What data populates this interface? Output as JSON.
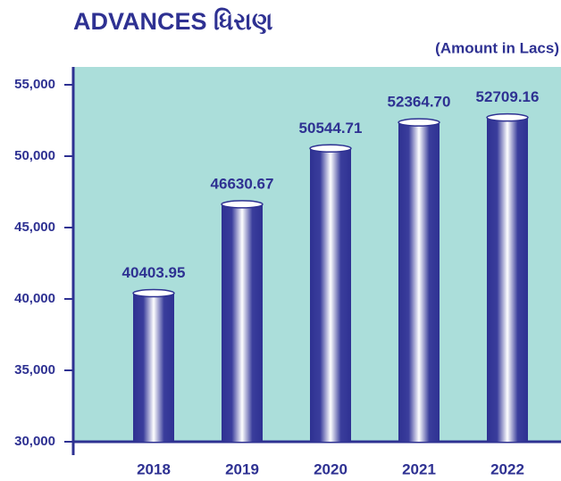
{
  "chart_data": {
    "type": "bar",
    "title": "ADVANCES ધિરાણ",
    "subtitle": "(Amount in Lacs)",
    "categories": [
      "2018",
      "2019",
      "2020",
      "2021",
      "2022"
    ],
    "values": [
      40403.95,
      46630.67,
      50544.71,
      52364.7,
      52709.16
    ],
    "value_labels": [
      "40403.95",
      "46630.67",
      "50544.71",
      "52364.70",
      "52709.16"
    ],
    "color": "#2e3192",
    "ylim": [
      30000,
      56250
    ],
    "yticks": [
      {
        "value": 30000,
        "label": "30,000"
      },
      {
        "value": 35000,
        "label": "35,000"
      },
      {
        "value": 40000,
        "label": "40,000"
      },
      {
        "value": 45000,
        "label": "45,000"
      },
      {
        "value": 50000,
        "label": "50,000"
      },
      {
        "value": 55000,
        "label": "55,000"
      }
    ]
  }
}
